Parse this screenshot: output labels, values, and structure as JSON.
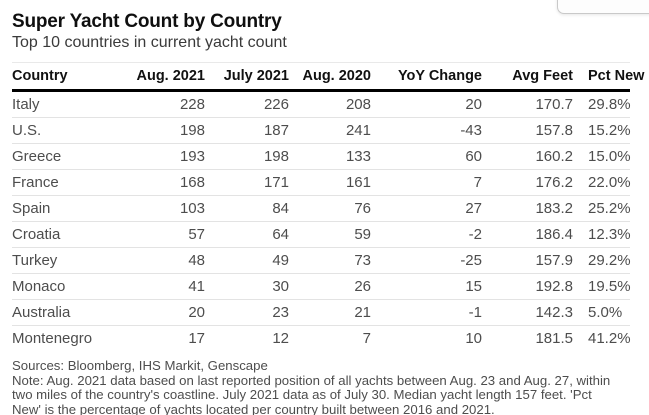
{
  "header": {
    "title": "Super Yacht Count by Country",
    "subtitle": "Top 10 countries in current yacht count"
  },
  "colors": {
    "header_rule": "#000000",
    "row_divider": "#e3e3e3",
    "body_text": "#4d4d4d",
    "heading_text": "#0f0f0f"
  },
  "chart_data": {
    "type": "table",
    "title": "Super Yacht Count by Country",
    "subtitle": "Top 10 countries in current yacht count",
    "columns": [
      "Country",
      "Aug. 2021",
      "July 2021",
      "Aug. 2020",
      "YoY Change",
      "Avg Feet",
      "Pct New"
    ],
    "rows": [
      [
        "Italy",
        228,
        226,
        208,
        20,
        170.7,
        "29.8%"
      ],
      [
        "U.S.",
        198,
        187,
        241,
        -43,
        157.8,
        "15.2%"
      ],
      [
        "Greece",
        193,
        198,
        133,
        60,
        160.2,
        "15.0%"
      ],
      [
        "France",
        168,
        171,
        161,
        7,
        176.2,
        "22.0%"
      ],
      [
        "Spain",
        103,
        84,
        76,
        27,
        183.2,
        "25.2%"
      ],
      [
        "Croatia",
        57,
        64,
        59,
        -2,
        186.4,
        "12.3%"
      ],
      [
        "Turkey",
        48,
        49,
        73,
        -25,
        157.9,
        "29.2%"
      ],
      [
        "Monaco",
        41,
        30,
        26,
        15,
        192.8,
        "19.5%"
      ],
      [
        "Australia",
        20,
        23,
        21,
        -1,
        142.3,
        "5.0%"
      ],
      [
        "Montenegro",
        17,
        12,
        7,
        10,
        181.5,
        "41.2%"
      ]
    ],
    "sources": "Sources: Bloomberg, IHS Markit, Genscape",
    "note": "Note: Aug. 2021 data based on last reported position of all yachts between Aug. 23 and Aug. 27, within two miles of the country's coastline. July 2021 data as of July 30. Median yacht length 157 feet. 'Pct New' is the percentage of yachts located per country built between 2016 and 2021."
  },
  "footer": {
    "sources": "Sources: Bloomberg, IHS Markit, Genscape",
    "note_lines": [
      "Note: Aug. 2021 data based on last reported position of all yachts between Aug. 23 and Aug. 27, within",
      "two miles of the country's coastline. July 2021 data as of July 30. Median yacht length 157 feet. 'Pct",
      "New' is the percentage of yachts located per country built between 2016 and 2021."
    ]
  }
}
